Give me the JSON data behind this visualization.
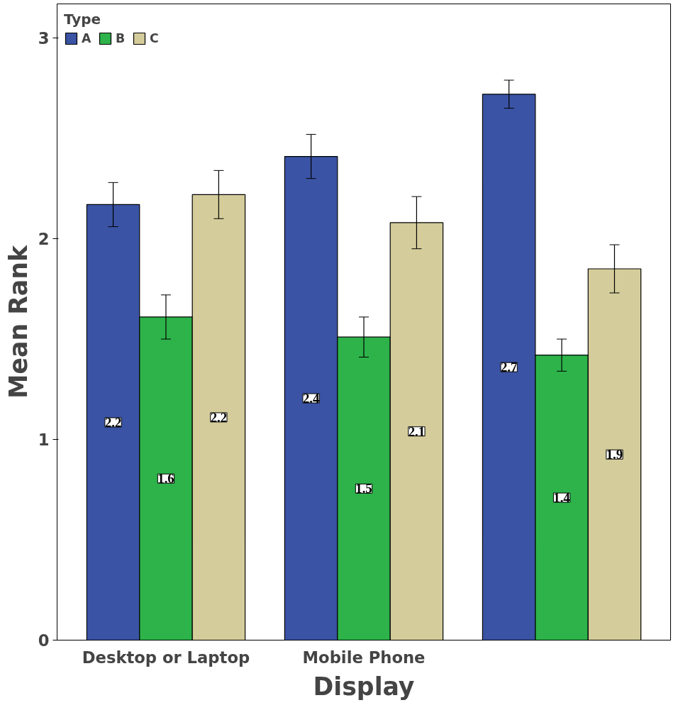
{
  "chart_data": {
    "type": "bar",
    "xlabel": "Display",
    "ylabel": "Mean Rank",
    "legend_title": "Type",
    "categories": [
      "Desktop or Laptop",
      "Mobile Phone",
      null
    ],
    "series": [
      {
        "name": "A",
        "color": "#3a53a4",
        "values": [
          2.17,
          2.41,
          2.72
        ],
        "errors": [
          0.11,
          0.11,
          0.07
        ],
        "value_labels": [
          "2.2",
          "2.4",
          "2.7"
        ]
      },
      {
        "name": "B",
        "color": "#2db34a",
        "values": [
          1.61,
          1.51,
          1.42
        ],
        "errors": [
          0.11,
          0.1,
          0.08
        ],
        "value_labels": [
          "1.6",
          "1.5",
          "1.4"
        ]
      },
      {
        "name": "C",
        "color": "#d4cc9a",
        "values": [
          2.22,
          2.08,
          1.85
        ],
        "errors": [
          0.12,
          0.13,
          0.12
        ],
        "value_labels": [
          "2.2",
          "2.1",
          "1.9"
        ]
      }
    ],
    "ylim": [
      0,
      3.17
    ],
    "yticks": [
      0,
      1,
      2,
      3
    ],
    "grid": false,
    "legend": "top left"
  }
}
